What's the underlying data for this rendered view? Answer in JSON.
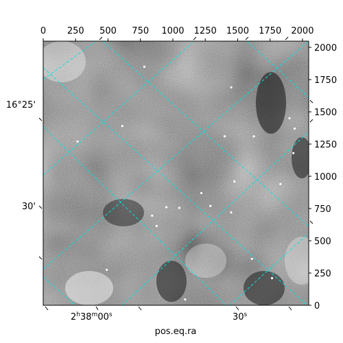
{
  "chart_data": {
    "type": "image",
    "xlabel": "pos.eq.ra",
    "ylabel": "",
    "xlim": [
      0,
      2048
    ],
    "ylim": [
      0,
      2048
    ],
    "x_ticks": [
      0,
      250,
      500,
      750,
      1000,
      1250,
      1500,
      1750,
      2000
    ],
    "y_ticks": [
      0,
      250,
      500,
      750,
      1000,
      1250,
      1500,
      1750,
      2000
    ],
    "x_tick_labels": [
      "0",
      "250",
      "500",
      "750",
      "1000",
      "1250",
      "1500",
      "1750",
      "2000"
    ],
    "y_tick_labels": [
      "0",
      "250",
      "500",
      "750",
      "1000",
      "1250",
      "1500",
      "1750",
      "2000"
    ],
    "ra_tick_labels": [
      "2h38m00s",
      "30s"
    ],
    "dec_tick_labels": [
      "16°25'",
      "30'"
    ],
    "grid_color": "#00e5e5",
    "colormap": "grayscale",
    "stars": [
      {
        "x": 1450,
        "y": 1690
      },
      {
        "x": 1400,
        "y": 1310
      },
      {
        "x": 780,
        "y": 1850
      },
      {
        "x": 1940,
        "y": 1370
      },
      {
        "x": 1930,
        "y": 1180
      },
      {
        "x": 950,
        "y": 760
      },
      {
        "x": 1290,
        "y": 770
      },
      {
        "x": 840,
        "y": 695
      },
      {
        "x": 1050,
        "y": 755
      },
      {
        "x": 610,
        "y": 1390
      },
      {
        "x": 265,
        "y": 1270
      },
      {
        "x": 490,
        "y": 275
      },
      {
        "x": 1095,
        "y": 45
      },
      {
        "x": 875,
        "y": 615
      },
      {
        "x": 1475,
        "y": 960
      },
      {
        "x": 1830,
        "y": 940
      },
      {
        "x": 1625,
        "y": 1310
      },
      {
        "x": 1900,
        "y": 1450
      },
      {
        "x": 1220,
        "y": 870
      },
      {
        "x": 1765,
        "y": 210
      },
      {
        "x": 1610,
        "y": 360
      },
      {
        "x": 1450,
        "y": 720
      }
    ]
  }
}
